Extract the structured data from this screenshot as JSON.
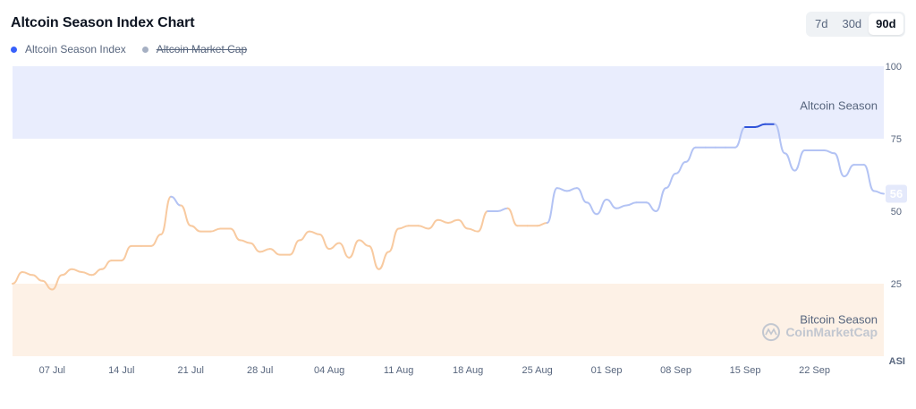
{
  "header": {
    "title": "Altcoin Season Index Chart"
  },
  "legend": {
    "items": [
      {
        "label": "Altcoin Season Index",
        "color": "#3861fb",
        "enabled": true
      },
      {
        "label": "Altcoin Market Cap",
        "color": "#a6b0c3",
        "enabled": false
      }
    ]
  },
  "range_toggle": {
    "options": [
      "7d",
      "30d",
      "90d"
    ],
    "selected": "90d"
  },
  "colors": {
    "altcoin_band": "#e9edfd",
    "bitcoin_band": "#fdf1e6",
    "line_light_orange": "#f8caa0",
    "line_dark_orange": "#f38a25",
    "line_light_blue": "#b3c3f4",
    "line_dark_blue": "#2f53d9",
    "badge_bg": "#e4e9fb",
    "badge_text": "#ffffff"
  },
  "watermark": "CoinMarketCap",
  "chart_data": {
    "type": "line",
    "title": "Altcoin Season Index Chart",
    "ylabel": "ASI",
    "ylim": [
      0,
      100
    ],
    "yticks": [
      "100",
      "75",
      "50",
      "25"
    ],
    "xtick_labels": [
      "07 Jul",
      "14 Jul",
      "21 Jul",
      "28 Jul",
      "04 Aug",
      "11 Aug",
      "18 Aug",
      "25 Aug",
      "01 Sep",
      "08 Sep",
      "15 Sep",
      "22 Sep"
    ],
    "bands": [
      {
        "label": "Altcoin Season",
        "from": 75,
        "to": 100
      },
      {
        "label": "Bitcoin Season",
        "from": 0,
        "to": 25
      }
    ],
    "current_value": "56",
    "series": [
      {
        "name": "Altcoin Season Index",
        "x": [
          "2024-07-03",
          "2024-07-04",
          "2024-07-05",
          "2024-07-06",
          "2024-07-07",
          "2024-07-08",
          "2024-07-09",
          "2024-07-10",
          "2024-07-11",
          "2024-07-12",
          "2024-07-13",
          "2024-07-14",
          "2024-07-15",
          "2024-07-16",
          "2024-07-17",
          "2024-07-18",
          "2024-07-19",
          "2024-07-20",
          "2024-07-21",
          "2024-07-22",
          "2024-07-23",
          "2024-07-24",
          "2024-07-25",
          "2024-07-26",
          "2024-07-27",
          "2024-07-28",
          "2024-07-29",
          "2024-07-30",
          "2024-07-31",
          "2024-08-01",
          "2024-08-02",
          "2024-08-03",
          "2024-08-04",
          "2024-08-05",
          "2024-08-06",
          "2024-08-07",
          "2024-08-08",
          "2024-08-09",
          "2024-08-10",
          "2024-08-11",
          "2024-08-12",
          "2024-08-13",
          "2024-08-14",
          "2024-08-15",
          "2024-08-16",
          "2024-08-17",
          "2024-08-18",
          "2024-08-19",
          "2024-08-20",
          "2024-08-21",
          "2024-08-22",
          "2024-08-23",
          "2024-08-24",
          "2024-08-25",
          "2024-08-26",
          "2024-08-27",
          "2024-08-28",
          "2024-08-29",
          "2024-08-30",
          "2024-08-31",
          "2024-09-01",
          "2024-09-02",
          "2024-09-03",
          "2024-09-04",
          "2024-09-05",
          "2024-09-06",
          "2024-09-07",
          "2024-09-08",
          "2024-09-09",
          "2024-09-10",
          "2024-09-11",
          "2024-09-12",
          "2024-09-13",
          "2024-09-14",
          "2024-09-15",
          "2024-09-16",
          "2024-09-17",
          "2024-09-18",
          "2024-09-19",
          "2024-09-20",
          "2024-09-21",
          "2024-09-22",
          "2024-09-23",
          "2024-09-24",
          "2024-09-25",
          "2024-09-26",
          "2024-09-27",
          "2024-09-28",
          "2024-09-29"
        ],
        "values": [
          25,
          29,
          28,
          26,
          23,
          28,
          30,
          29,
          28,
          30,
          33,
          33,
          38,
          38,
          38,
          42,
          55,
          52,
          45,
          43,
          43,
          44,
          44,
          40,
          39,
          36,
          37,
          35,
          35,
          40,
          43,
          42,
          37,
          39,
          34,
          40,
          38,
          30,
          36,
          44,
          45,
          45,
          44,
          47,
          46,
          47,
          44,
          43,
          50,
          50,
          51,
          45,
          45,
          45,
          46,
          58,
          57,
          58,
          53,
          49,
          54,
          51,
          52,
          53,
          53,
          50,
          58,
          63,
          67,
          72,
          72,
          72,
          72,
          72,
          79,
          79,
          80,
          80,
          70,
          64,
          71,
          71,
          71,
          70,
          62,
          66,
          66,
          57,
          56
        ]
      }
    ]
  }
}
